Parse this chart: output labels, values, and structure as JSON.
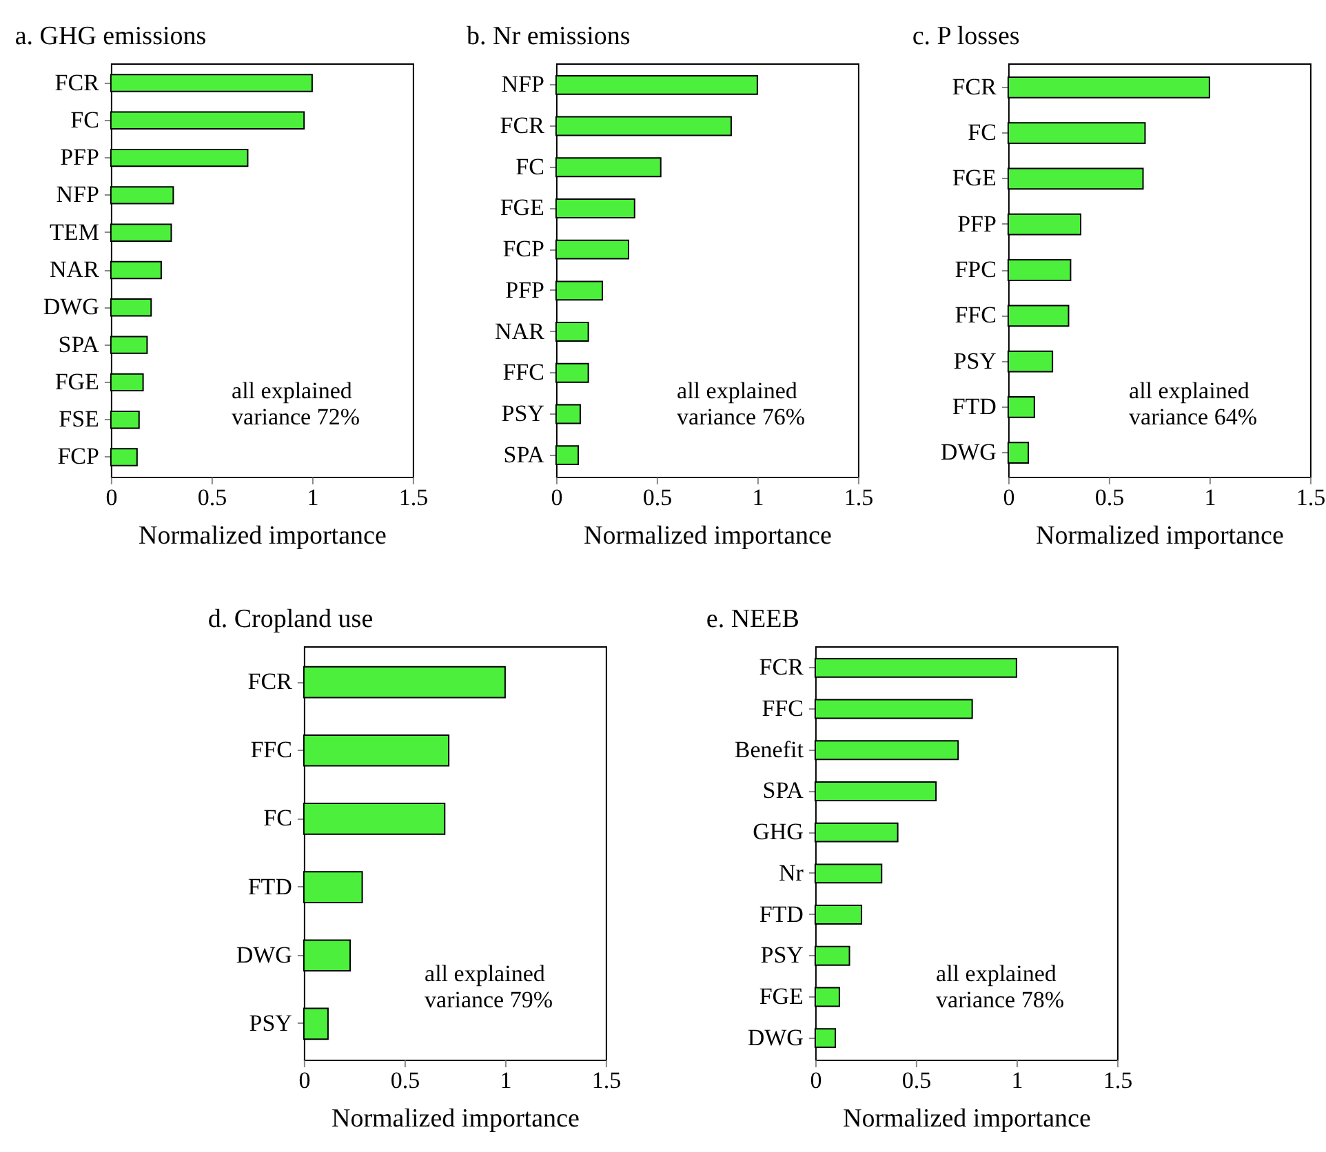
{
  "chart_data": [
    {
      "type": "bar",
      "orientation": "horizontal",
      "title": "a. GHG emissions",
      "xlabel": "Normalized importance",
      "categories": [
        "FCR",
        "FC",
        "PFP",
        "NFP",
        "TEM",
        "NAR",
        "DWG",
        "SPA",
        "FGE",
        "FSE",
        "FCP"
      ],
      "values": [
        1.0,
        0.96,
        0.68,
        0.31,
        0.3,
        0.25,
        0.2,
        0.18,
        0.16,
        0.14,
        0.13
      ],
      "color": "#4cf03c",
      "xlim": [
        0,
        1.5
      ],
      "xticks": [
        0,
        0.5,
        1,
        1.5
      ],
      "annotations": [
        "all explained\nvariance 72%"
      ]
    },
    {
      "type": "bar",
      "orientation": "horizontal",
      "title": "b. Nr emissions",
      "xlabel": "Normalized importance",
      "categories": [
        "NFP",
        "FCR",
        "FC",
        "FGE",
        "FCP",
        "PFP",
        "NAR",
        "FFC",
        "PSY",
        "SPA"
      ],
      "values": [
        1.0,
        0.87,
        0.52,
        0.39,
        0.36,
        0.23,
        0.16,
        0.16,
        0.12,
        0.11
      ],
      "color": "#4cf03c",
      "xlim": [
        0,
        1.5
      ],
      "xticks": [
        0,
        0.5,
        1,
        1.5
      ],
      "annotations": [
        "all explained\nvariance 76%"
      ]
    },
    {
      "type": "bar",
      "orientation": "horizontal",
      "title": "c. P losses",
      "xlabel": "Normalized importance",
      "categories": [
        "FCR",
        "FC",
        "FGE",
        "PFP",
        "FPC",
        "FFC",
        "PSY",
        "FTD",
        "DWG"
      ],
      "values": [
        1.0,
        0.68,
        0.67,
        0.36,
        0.31,
        0.3,
        0.22,
        0.13,
        0.1
      ],
      "color": "#4cf03c",
      "xlim": [
        0,
        1.5
      ],
      "xticks": [
        0,
        0.5,
        1,
        1.5
      ],
      "annotations": [
        "all explained\nvariance 64%"
      ]
    },
    {
      "type": "bar",
      "orientation": "horizontal",
      "title": "d. Cropland use",
      "xlabel": "Normalized importance",
      "categories": [
        "FCR",
        "FFC",
        "FC",
        "FTD",
        "DWG",
        "PSY"
      ],
      "values": [
        1.0,
        0.72,
        0.7,
        0.29,
        0.23,
        0.12
      ],
      "color": "#4cf03c",
      "xlim": [
        0,
        1.5
      ],
      "xticks": [
        0,
        0.5,
        1,
        1.5
      ],
      "annotations": [
        "all explained\nvariance 79%"
      ]
    },
    {
      "type": "bar",
      "orientation": "horizontal",
      "title": "e. NEEB",
      "xlabel": "Normalized importance",
      "categories": [
        "FCR",
        "FFC",
        "Benefit",
        "SPA",
        "GHG",
        "Nr",
        "FTD",
        "PSY",
        "FGE",
        "DWG"
      ],
      "values": [
        1.0,
        0.78,
        0.71,
        0.6,
        0.41,
        0.33,
        0.23,
        0.17,
        0.12,
        0.1
      ],
      "color": "#4cf03c",
      "xlim": [
        0,
        1.5
      ],
      "xticks": [
        0,
        0.5,
        1,
        1.5
      ],
      "annotations": [
        "all explained\nvariance 78%"
      ]
    }
  ]
}
